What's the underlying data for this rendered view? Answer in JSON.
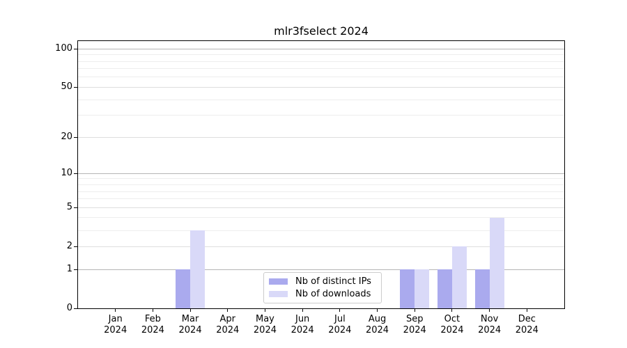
{
  "title": "mlr3fselect 2024",
  "chart_data": {
    "type": "bar",
    "title": "mlr3fselect 2024",
    "x_months": [
      "Jan",
      "Feb",
      "Mar",
      "Apr",
      "May",
      "Jun",
      "Jul",
      "Aug",
      "Sep",
      "Oct",
      "Nov",
      "Dec"
    ],
    "x_year": "2024",
    "categories": [
      "Jan 2024",
      "Feb 2024",
      "Mar 2024",
      "Apr 2024",
      "May 2024",
      "Jun 2024",
      "Jul 2024",
      "Aug 2024",
      "Sep 2024",
      "Oct 2024",
      "Nov 2024",
      "Dec 2024"
    ],
    "series": [
      {
        "name": "Nb of distinct IPs",
        "color": "#aaaaee",
        "values": [
          0,
          0,
          1,
          0,
          0,
          0,
          0,
          0,
          1,
          1,
          1,
          0
        ]
      },
      {
        "name": "Nb of downloads",
        "color": "#d9d9f8",
        "values": [
          0,
          0,
          3,
          0,
          0,
          0,
          0,
          0,
          1,
          2,
          4,
          0
        ]
      }
    ],
    "yscale": "log10(1+x)",
    "ylim": [
      0,
      115
    ],
    "y_major_tick_labels": [
      0,
      1,
      2,
      5,
      10,
      20,
      50,
      100
    ],
    "y_major_gridlines": [
      1,
      10,
      100
    ],
    "y_labeled_minor_gridlines": [
      2,
      5,
      20,
      50
    ],
    "y_minor_gridlines": [
      3,
      4,
      6,
      7,
      8,
      9,
      30,
      40,
      60,
      70,
      80,
      90
    ],
    "grid": true,
    "legend_position": "lower center"
  },
  "legend": {
    "items": [
      {
        "label": "Nb of distinct IPs",
        "color": "#aaaaee"
      },
      {
        "label": "Nb of downloads",
        "color": "#d9d9f8"
      }
    ]
  },
  "colors": {
    "background": "#ffffff",
    "axis_frame": "#000000",
    "text": "#000000",
    "major_grid": "#b5b5b5",
    "labeled_minor_grid": "#dedede",
    "minor_grid": "#ededed",
    "legend_border": "#cccccc",
    "bar_distinct_ips": "#aaaaee",
    "bar_downloads": "#d9d9f8"
  }
}
